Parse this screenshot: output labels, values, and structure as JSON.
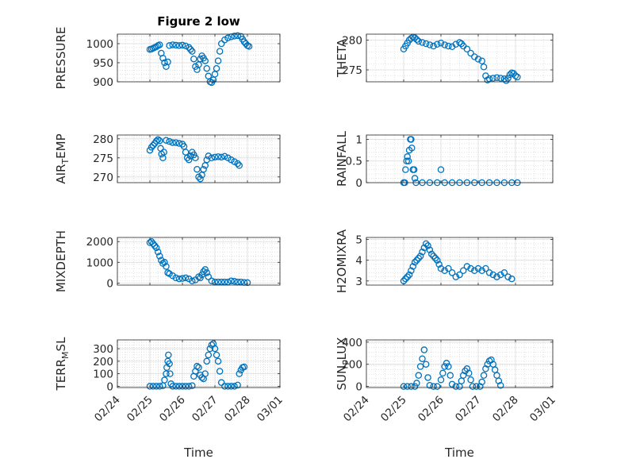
{
  "chart_data": [
    {
      "type": "scatter",
      "title": "Figure 2 low",
      "ylabel": "PRESSURE",
      "ylim": [
        900,
        1025
      ],
      "yticks": [
        900,
        950,
        1000
      ],
      "xlabel": "",
      "x_ticklabels_visible": false,
      "points": [
        [
          0,
          985
        ],
        [
          0.05,
          986
        ],
        [
          0.1,
          988
        ],
        [
          0.15,
          990
        ],
        [
          0.2,
          992
        ],
        [
          0.25,
          995
        ],
        [
          0.3,
          997
        ],
        [
          0.35,
          975
        ],
        [
          0.4,
          962
        ],
        [
          0.45,
          950
        ],
        [
          0.5,
          940
        ],
        [
          0.55,
          952
        ],
        [
          0.6,
          995
        ],
        [
          0.7,
          997
        ],
        [
          0.8,
          996
        ],
        [
          0.9,
          995
        ],
        [
          1.0,
          996
        ],
        [
          1.1,
          994
        ],
        [
          1.2,
          990
        ],
        [
          1.25,
          985
        ],
        [
          1.3,
          980
        ],
        [
          1.35,
          960
        ],
        [
          1.4,
          940
        ],
        [
          1.45,
          932
        ],
        [
          1.5,
          945
        ],
        [
          1.55,
          960
        ],
        [
          1.6,
          968
        ],
        [
          1.65,
          962
        ],
        [
          1.7,
          955
        ],
        [
          1.75,
          935
        ],
        [
          1.8,
          915
        ],
        [
          1.85,
          900
        ],
        [
          1.9,
          898
        ],
        [
          1.95,
          905
        ],
        [
          2.0,
          920
        ],
        [
          2.05,
          935
        ],
        [
          2.1,
          955
        ],
        [
          2.15,
          980
        ],
        [
          2.2,
          1000
        ],
        [
          2.3,
          1010
        ],
        [
          2.4,
          1015
        ],
        [
          2.5,
          1018
        ],
        [
          2.6,
          1020
        ],
        [
          2.7,
          1021
        ],
        [
          2.8,
          1019
        ],
        [
          2.85,
          1012
        ],
        [
          2.9,
          1005
        ],
        [
          2.95,
          1000
        ],
        [
          3.0,
          995
        ],
        [
          3.05,
          993
        ]
      ]
    },
    {
      "type": "scatter",
      "title": "",
      "ylabel": "THETA",
      "ylim": [
        273,
        281
      ],
      "yticks": [
        275,
        280
      ],
      "xlabel": "",
      "x_ticklabels_visible": false,
      "points": [
        [
          0,
          278.5
        ],
        [
          0.05,
          279.0
        ],
        [
          0.1,
          279.5
        ],
        [
          0.15,
          280.0
        ],
        [
          0.2,
          280.3
        ],
        [
          0.25,
          280.5
        ],
        [
          0.3,
          280.4
        ],
        [
          0.35,
          280.1
        ],
        [
          0.4,
          279.8
        ],
        [
          0.5,
          279.6
        ],
        [
          0.6,
          279.4
        ],
        [
          0.7,
          279.2
        ],
        [
          0.8,
          279.0
        ],
        [
          0.9,
          279.3
        ],
        [
          1.0,
          279.5
        ],
        [
          1.1,
          279.2
        ],
        [
          1.2,
          279.0
        ],
        [
          1.3,
          278.9
        ],
        [
          1.4,
          279.3
        ],
        [
          1.5,
          279.6
        ],
        [
          1.55,
          279.4
        ],
        [
          1.6,
          279.0
        ],
        [
          1.7,
          278.5
        ],
        [
          1.8,
          277.8
        ],
        [
          1.9,
          277.2
        ],
        [
          2.0,
          276.8
        ],
        [
          2.1,
          276.5
        ],
        [
          2.15,
          275.5
        ],
        [
          2.2,
          274.0
        ],
        [
          2.25,
          273.3
        ],
        [
          2.3,
          273.5
        ],
        [
          2.4,
          273.6
        ],
        [
          2.5,
          273.7
        ],
        [
          2.6,
          273.6
        ],
        [
          2.7,
          273.5
        ],
        [
          2.75,
          273.2
        ],
        [
          2.8,
          273.6
        ],
        [
          2.85,
          274.2
        ],
        [
          2.9,
          274.5
        ],
        [
          2.95,
          274.4
        ],
        [
          3.0,
          274.0
        ],
        [
          3.05,
          273.8
        ]
      ]
    },
    {
      "type": "scatter",
      "title": "",
      "ylabel": "AIR_TEMP",
      "ylim": [
        268.5,
        281
      ],
      "yticks": [
        270,
        275,
        280
      ],
      "xlabel": "",
      "x_ticklabels_visible": false,
      "points": [
        [
          0,
          277
        ],
        [
          0.05,
          277.8
        ],
        [
          0.1,
          278.3
        ],
        [
          0.15,
          278.8
        ],
        [
          0.2,
          279.4
        ],
        [
          0.25,
          279.8
        ],
        [
          0.3,
          279.5
        ],
        [
          0.33,
          277.5
        ],
        [
          0.36,
          276.0
        ],
        [
          0.4,
          275
        ],
        [
          0.43,
          276.5
        ],
        [
          0.5,
          279.6
        ],
        [
          0.6,
          279.3
        ],
        [
          0.7,
          279.0
        ],
        [
          0.8,
          279.0
        ],
        [
          0.9,
          278.8
        ],
        [
          1.0,
          278.6
        ],
        [
          1.05,
          278.0
        ],
        [
          1.1,
          276.5
        ],
        [
          1.15,
          275.0
        ],
        [
          1.2,
          274.5
        ],
        [
          1.25,
          275.5
        ],
        [
          1.3,
          276.5
        ],
        [
          1.35,
          275.8
        ],
        [
          1.4,
          275.0
        ],
        [
          1.45,
          272.0
        ],
        [
          1.5,
          270.0
        ],
        [
          1.55,
          269.5
        ],
        [
          1.6,
          270.5
        ],
        [
          1.65,
          272.0
        ],
        [
          1.7,
          273.0
        ],
        [
          1.75,
          274.5
        ],
        [
          1.8,
          275.5
        ],
        [
          1.9,
          275.0
        ],
        [
          2.0,
          275.2
        ],
        [
          2.1,
          275.3
        ],
        [
          2.2,
          275.2
        ],
        [
          2.3,
          275.4
        ],
        [
          2.4,
          275.0
        ],
        [
          2.5,
          274.5
        ],
        [
          2.6,
          274.0
        ],
        [
          2.7,
          273.5
        ],
        [
          2.75,
          273.0
        ]
      ]
    },
    {
      "type": "scatter",
      "title": "",
      "ylabel": "RAINFALL",
      "ylim": [
        0,
        1.1
      ],
      "yticks": [
        0,
        0.5,
        1
      ],
      "xlabel": "",
      "x_ticklabels_visible": false,
      "points": [
        [
          0,
          0
        ],
        [
          0.03,
          0
        ],
        [
          0.05,
          0.3
        ],
        [
          0.08,
          0.5
        ],
        [
          0.1,
          0.6
        ],
        [
          0.13,
          0.5
        ],
        [
          0.15,
          0.75
        ],
        [
          0.18,
          1.0
        ],
        [
          0.2,
          1.0
        ],
        [
          0.22,
          0.8
        ],
        [
          0.25,
          0.3
        ],
        [
          0.28,
          0.3
        ],
        [
          0.3,
          0.1
        ],
        [
          0.33,
          0
        ],
        [
          0.5,
          0
        ],
        [
          0.7,
          0
        ],
        [
          0.9,
          0
        ],
        [
          1.0,
          0.3
        ],
        [
          1.1,
          0
        ],
        [
          1.3,
          0
        ],
        [
          1.5,
          0
        ],
        [
          1.7,
          0
        ],
        [
          1.9,
          0
        ],
        [
          2.1,
          0
        ],
        [
          2.3,
          0
        ],
        [
          2.5,
          0
        ],
        [
          2.7,
          0
        ],
        [
          2.9,
          0
        ],
        [
          3.05,
          0
        ]
      ]
    },
    {
      "type": "scatter",
      "title": "",
      "ylabel": "MIXDEPTH",
      "ylim": [
        -100,
        2200
      ],
      "yticks": [
        0,
        1000,
        2000
      ],
      "xlabel": "",
      "x_ticklabels_visible": false,
      "points": [
        [
          0,
          1950
        ],
        [
          0.05,
          2000
        ],
        [
          0.1,
          1900
        ],
        [
          0.15,
          1800
        ],
        [
          0.2,
          1700
        ],
        [
          0.25,
          1500
        ],
        [
          0.3,
          1300
        ],
        [
          0.35,
          1100
        ],
        [
          0.4,
          950
        ],
        [
          0.45,
          1000
        ],
        [
          0.5,
          800
        ],
        [
          0.55,
          500
        ],
        [
          0.6,
          450
        ],
        [
          0.7,
          350
        ],
        [
          0.8,
          250
        ],
        [
          0.9,
          200
        ],
        [
          1.0,
          220
        ],
        [
          1.1,
          250
        ],
        [
          1.2,
          200
        ],
        [
          1.3,
          100
        ],
        [
          1.4,
          150
        ],
        [
          1.5,
          300
        ],
        [
          1.55,
          250
        ],
        [
          1.6,
          400
        ],
        [
          1.65,
          550
        ],
        [
          1.7,
          650
        ],
        [
          1.75,
          500
        ],
        [
          1.8,
          300
        ],
        [
          1.9,
          100
        ],
        [
          2.0,
          50
        ],
        [
          2.1,
          50
        ],
        [
          2.2,
          50
        ],
        [
          2.3,
          50
        ],
        [
          2.4,
          50
        ],
        [
          2.5,
          100
        ],
        [
          2.6,
          80
        ],
        [
          2.7,
          50
        ],
        [
          2.8,
          50
        ],
        [
          2.9,
          30
        ],
        [
          3.0,
          20
        ]
      ]
    },
    {
      "type": "scatter",
      "title": "",
      "ylabel": "H2OMIXRA",
      "ylim": [
        2.8,
        5.1
      ],
      "yticks": [
        3,
        4,
        5
      ],
      "xlabel": "",
      "x_ticklabels_visible": false,
      "points": [
        [
          0,
          3.0
        ],
        [
          0.05,
          3.1
        ],
        [
          0.1,
          3.2
        ],
        [
          0.15,
          3.3
        ],
        [
          0.2,
          3.5
        ],
        [
          0.25,
          3.7
        ],
        [
          0.3,
          3.9
        ],
        [
          0.35,
          4.0
        ],
        [
          0.4,
          4.1
        ],
        [
          0.45,
          4.2
        ],
        [
          0.5,
          4.4
        ],
        [
          0.55,
          4.6
        ],
        [
          0.6,
          4.8
        ],
        [
          0.65,
          4.7
        ],
        [
          0.7,
          4.5
        ],
        [
          0.75,
          4.3
        ],
        [
          0.8,
          4.2
        ],
        [
          0.85,
          4.1
        ],
        [
          0.9,
          4.0
        ],
        [
          0.95,
          3.8
        ],
        [
          1.0,
          3.6
        ],
        [
          1.1,
          3.5
        ],
        [
          1.2,
          3.6
        ],
        [
          1.3,
          3.4
        ],
        [
          1.4,
          3.2
        ],
        [
          1.5,
          3.3
        ],
        [
          1.6,
          3.5
        ],
        [
          1.7,
          3.7
        ],
        [
          1.8,
          3.6
        ],
        [
          1.9,
          3.5
        ],
        [
          2.0,
          3.6
        ],
        [
          2.1,
          3.5
        ],
        [
          2.2,
          3.6
        ],
        [
          2.3,
          3.4
        ],
        [
          2.4,
          3.3
        ],
        [
          2.5,
          3.2
        ],
        [
          2.6,
          3.3
        ],
        [
          2.7,
          3.4
        ],
        [
          2.8,
          3.2
        ],
        [
          2.9,
          3.1
        ]
      ]
    },
    {
      "type": "scatter",
      "title": "",
      "ylabel": "TERR_MSL",
      "ylim": [
        -10,
        370
      ],
      "yticks": [
        0,
        100,
        200,
        300
      ],
      "xlabel": "Time",
      "xticklabels": [
        "02/24",
        "02/25",
        "02/26",
        "02/27",
        "02/28",
        "03/01"
      ],
      "points": [
        [
          0,
          0
        ],
        [
          0.1,
          0
        ],
        [
          0.2,
          0
        ],
        [
          0.3,
          0
        ],
        [
          0.4,
          5
        ],
        [
          0.45,
          50
        ],
        [
          0.5,
          100
        ],
        [
          0.52,
          150
        ],
        [
          0.55,
          200
        ],
        [
          0.57,
          250
        ],
        [
          0.6,
          180
        ],
        [
          0.62,
          100
        ],
        [
          0.65,
          20
        ],
        [
          0.7,
          0
        ],
        [
          0.8,
          0
        ],
        [
          0.9,
          0
        ],
        [
          1.0,
          0
        ],
        [
          1.1,
          0
        ],
        [
          1.2,
          0
        ],
        [
          1.3,
          5
        ],
        [
          1.35,
          80
        ],
        [
          1.4,
          120
        ],
        [
          1.45,
          160
        ],
        [
          1.5,
          150
        ],
        [
          1.55,
          90
        ],
        [
          1.6,
          70
        ],
        [
          1.65,
          60
        ],
        [
          1.7,
          100
        ],
        [
          1.75,
          200
        ],
        [
          1.8,
          250
        ],
        [
          1.85,
          300
        ],
        [
          1.9,
          330
        ],
        [
          1.95,
          340
        ],
        [
          2.0,
          300
        ],
        [
          2.05,
          250
        ],
        [
          2.1,
          200
        ],
        [
          2.15,
          120
        ],
        [
          2.2,
          30
        ],
        [
          2.3,
          0
        ],
        [
          2.4,
          0
        ],
        [
          2.5,
          0
        ],
        [
          2.6,
          0
        ],
        [
          2.7,
          10
        ],
        [
          2.75,
          100
        ],
        [
          2.8,
          130
        ],
        [
          2.85,
          150
        ],
        [
          2.9,
          155
        ]
      ]
    },
    {
      "type": "scatter",
      "title": "",
      "ylabel": "SUN_FLUX",
      "ylim": [
        -10,
        420
      ],
      "yticks": [
        0,
        200,
        400
      ],
      "xlabel": "Time",
      "xticklabels": [
        "02/24",
        "02/25",
        "02/26",
        "02/27",
        "02/28",
        "03/01"
      ],
      "points": [
        [
          0,
          0
        ],
        [
          0.1,
          0
        ],
        [
          0.2,
          0
        ],
        [
          0.3,
          0
        ],
        [
          0.35,
          30
        ],
        [
          0.4,
          100
        ],
        [
          0.45,
          180
        ],
        [
          0.5,
          250
        ],
        [
          0.55,
          330
        ],
        [
          0.6,
          200
        ],
        [
          0.65,
          80
        ],
        [
          0.7,
          10
        ],
        [
          0.8,
          0
        ],
        [
          0.9,
          0
        ],
        [
          1.0,
          60
        ],
        [
          1.05,
          120
        ],
        [
          1.1,
          180
        ],
        [
          1.15,
          210
        ],
        [
          1.2,
          180
        ],
        [
          1.25,
          100
        ],
        [
          1.3,
          20
        ],
        [
          1.4,
          0
        ],
        [
          1.5,
          0
        ],
        [
          1.55,
          50
        ],
        [
          1.6,
          100
        ],
        [
          1.65,
          140
        ],
        [
          1.7,
          160
        ],
        [
          1.75,
          120
        ],
        [
          1.8,
          60
        ],
        [
          1.85,
          0
        ],
        [
          1.95,
          0
        ],
        [
          2.05,
          0
        ],
        [
          2.1,
          40
        ],
        [
          2.15,
          100
        ],
        [
          2.2,
          160
        ],
        [
          2.25,
          200
        ],
        [
          2.3,
          230
        ],
        [
          2.35,
          240
        ],
        [
          2.4,
          200
        ],
        [
          2.45,
          150
        ],
        [
          2.5,
          100
        ],
        [
          2.55,
          50
        ],
        [
          2.6,
          10
        ]
      ]
    }
  ]
}
